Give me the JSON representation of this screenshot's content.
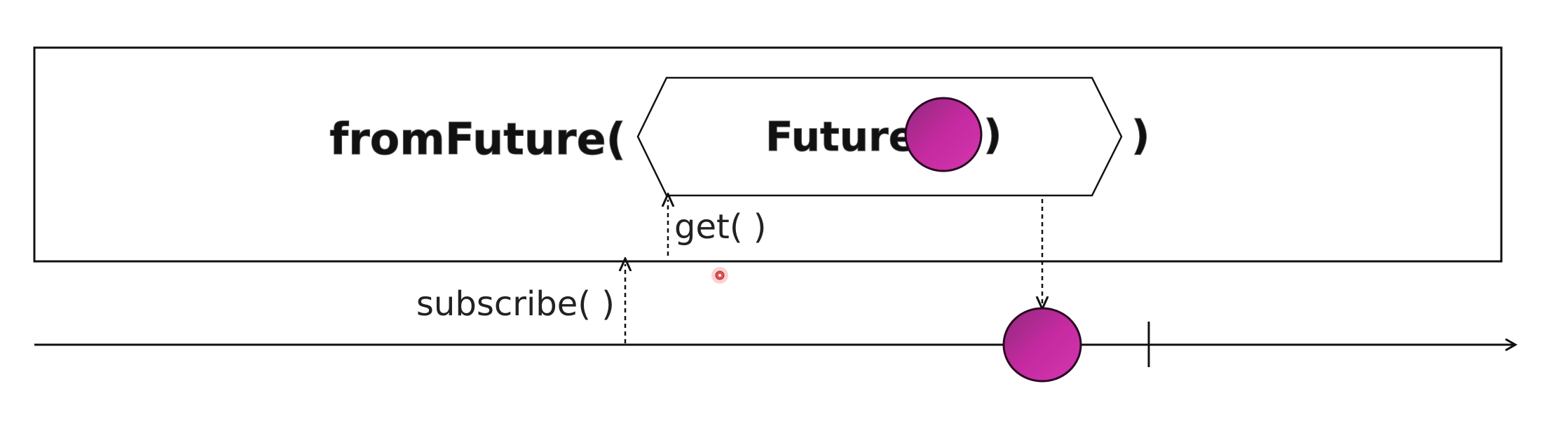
{
  "operator": {
    "name_label": "fromFuture(",
    "closing_paren": ")"
  },
  "future_box": {
    "label": "Future(",
    "closing_paren": ")"
  },
  "calls": {
    "get_label": "get( )",
    "subscribe_label": "subscribe( )"
  },
  "colors": {
    "marble_fill": "#c0289c",
    "marble_stroke": "#3a0a30",
    "line": "#111111",
    "background": "#ffffff",
    "cursor_dot": "#e05050"
  }
}
